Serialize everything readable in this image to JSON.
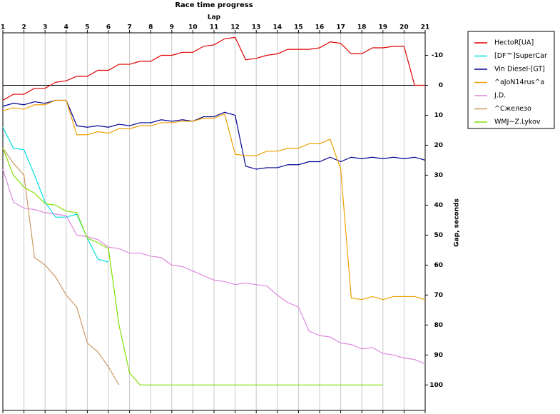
{
  "chart_data": {
    "type": "line",
    "title": "Race time progress",
    "x_label": "Lap",
    "y_label": "Gap, seconds",
    "x": [
      1,
      1.5,
      2,
      2.5,
      3,
      3.5,
      4,
      4.5,
      5,
      5.5,
      6,
      6.5,
      7,
      7.5,
      8,
      8.5,
      9,
      9.5,
      10,
      10.5,
      11,
      11.5,
      12,
      12.5,
      13,
      13.5,
      14,
      14.5,
      15,
      15.5,
      16,
      16.5,
      17,
      17.5,
      18,
      18.5,
      19,
      19.5,
      20,
      20.5,
      21
    ],
    "xlim": [
      1,
      21
    ],
    "xticks": [
      1,
      2,
      3,
      4,
      5,
      6,
      7,
      8,
      9,
      10,
      11,
      12,
      13,
      14,
      15,
      16,
      17,
      18,
      19,
      20,
      21
    ],
    "ylim": [
      -17.5,
      108.5
    ],
    "yticks": [
      -10,
      0,
      10,
      20,
      30,
      40,
      50,
      60,
      70,
      80,
      90,
      100
    ],
    "y_inverted": true,
    "grid": true,
    "series": [
      {
        "name": "HectoR[UA]",
        "color": "#e00000",
        "values": [
          5,
          3,
          3,
          1,
          1,
          -1,
          -1.5,
          -3,
          -3,
          -5,
          -5,
          -7,
          -7,
          -8,
          -8,
          -10,
          -10,
          -11,
          -11,
          -13,
          -13.5,
          -15.5,
          -16,
          -8.5,
          -9,
          -10,
          -10.5,
          -12,
          -12,
          -12,
          -12.5,
          -14.5,
          -14,
          -10.5,
          -10.5,
          -12.5,
          -12.5,
          -13,
          -13,
          0,
          0
        ]
      },
      {
        "name": "[DF™]SuperCar",
        "color": "#00e0e0",
        "values": [
          14,
          21,
          21.5,
          30,
          39,
          44,
          44,
          43,
          51,
          58,
          59,
          null,
          null,
          null,
          null,
          null,
          null,
          null,
          null,
          null,
          null,
          null,
          null,
          null,
          null,
          null,
          null,
          null,
          null,
          null,
          null,
          null,
          null,
          null,
          null,
          null,
          null,
          null,
          null,
          null,
          null
        ]
      },
      {
        "name": "Vin Diesel-[GT]",
        "color": "#000090",
        "values": [
          7,
          6,
          6.5,
          5.5,
          6,
          5,
          5,
          13.5,
          14,
          13.5,
          14,
          13,
          13.5,
          12.5,
          12.5,
          11.5,
          12,
          11.5,
          12,
          10.5,
          10.5,
          9,
          10,
          27,
          28,
          27.5,
          27.5,
          26.5,
          26.5,
          25.5,
          25.5,
          24,
          25.5,
          24,
          24.5,
          24,
          24.5,
          24,
          24.5,
          24,
          25
        ]
      },
      {
        "name": "^aJoN14rus^a",
        "color": "#f0a000",
        "values": [
          8.5,
          7.5,
          8,
          6.5,
          6.5,
          5,
          5,
          16.5,
          16.5,
          15.5,
          16,
          14.5,
          14.5,
          13.5,
          13.5,
          12.5,
          12.5,
          12,
          12,
          11,
          11,
          9.5,
          23,
          23.5,
          23.5,
          22,
          22,
          21,
          21,
          19.5,
          19.5,
          18,
          28,
          71,
          71.5,
          70.5,
          71.5,
          70.5,
          70.5,
          70.5,
          71.5
        ]
      },
      {
        "name": "J.D.",
        "color": "#dd88dd",
        "values": [
          28,
          39,
          41,
          41.5,
          42.5,
          43,
          43.5,
          50,
          50.5,
          51.5,
          54,
          54.5,
          56,
          56,
          57,
          57.5,
          60,
          60.5,
          62,
          63.5,
          65,
          65.5,
          66.5,
          66,
          66.5,
          67,
          70,
          72.5,
          74,
          82,
          83.5,
          84,
          86,
          86.5,
          88,
          87.5,
          89.5,
          90,
          91,
          91.5,
          93
        ]
      },
      {
        "name": "^Сжелезо",
        "color": "#cc9966",
        "values": [
          21,
          26,
          30,
          57.5,
          60,
          64,
          70,
          74,
          86,
          89,
          94,
          100,
          null,
          null,
          null,
          null,
          null,
          null,
          null,
          null,
          null,
          null,
          null,
          null,
          null,
          null,
          null,
          null,
          null,
          null,
          null,
          null,
          null,
          null,
          null,
          null,
          null,
          null,
          null,
          null,
          null
        ]
      },
      {
        "name": "WMJ~Z.Lykov",
        "color": "#80e000",
        "values": [
          21,
          30,
          34,
          36,
          39.5,
          40,
          42,
          42.5,
          51,
          52.5,
          54.5,
          80,
          96,
          100,
          100,
          100,
          100,
          100,
          100,
          100,
          100,
          100,
          100,
          100,
          100,
          100,
          100,
          100,
          100,
          100,
          100,
          100,
          100,
          100,
          100,
          100,
          100,
          null,
          null,
          null,
          null
        ]
      }
    ]
  }
}
